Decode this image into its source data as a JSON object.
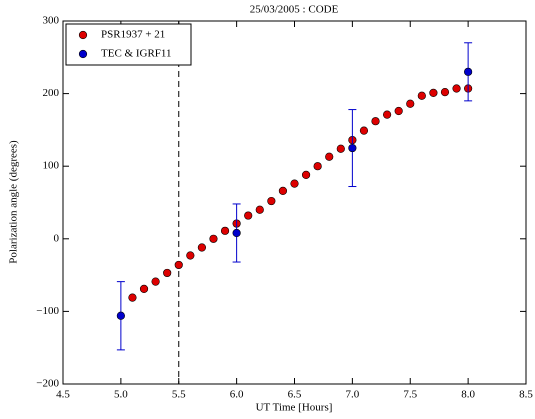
{
  "chart_data": {
    "type": "scatter",
    "title": "25/03/2005 : CODE",
    "x_label": "UT Time [Hours]",
    "y_label": "Polarization angle (degrees)",
    "xlim": [
      4.5,
      8.5
    ],
    "ylim": [
      -200,
      300
    ],
    "xticks": [
      {
        "value": 4.5,
        "label": "4.5"
      },
      {
        "value": 5,
        "label": "5.0"
      },
      {
        "value": 5.5,
        "label": "5.5"
      },
      {
        "value": 6,
        "label": "6.0"
      },
      {
        "value": 6.5,
        "label": "6.5"
      },
      {
        "value": 7,
        "label": "7.0"
      },
      {
        "value": 7.5,
        "label": "7.5"
      },
      {
        "value": 8,
        "label": "8.0"
      },
      {
        "value": 8.5,
        "label": "8.5"
      }
    ],
    "yticks": [
      {
        "value": -200,
        "label": "−200"
      },
      {
        "value": -100,
        "label": "−100"
      },
      0,
      100,
      200,
      300
    ],
    "vline": 5.5,
    "legend": "upper left",
    "series": [
      {
        "name": "PSR1937 + 21",
        "color": "#dd0000",
        "x": [
          5.1,
          5.2,
          5.3,
          5.4,
          5.5,
          5.6,
          5.7,
          5.8,
          5.9,
          6.0,
          6.1,
          6.2,
          6.3,
          6.4,
          6.5,
          6.6,
          6.7,
          6.8,
          6.9,
          7.0,
          7.1,
          7.2,
          7.3,
          7.4,
          7.5,
          7.6,
          7.7,
          7.8,
          7.9,
          8.0
        ],
        "values": [
          -81,
          -69,
          -59,
          -47,
          -36,
          -23,
          -12,
          0,
          11,
          21,
          32,
          40,
          52,
          66,
          76,
          88,
          100,
          113,
          124,
          136,
          149,
          162,
          171,
          176,
          186,
          197,
          201,
          202,
          207,
          207
        ]
      },
      {
        "name": "TEC & IGRF11",
        "color": "#0000cc",
        "x": [
          5.0,
          6.0,
          7.0,
          8.0
        ],
        "values": [
          -106,
          8,
          125,
          230
        ],
        "errors": [
          47,
          40,
          53,
          40
        ]
      }
    ]
  }
}
